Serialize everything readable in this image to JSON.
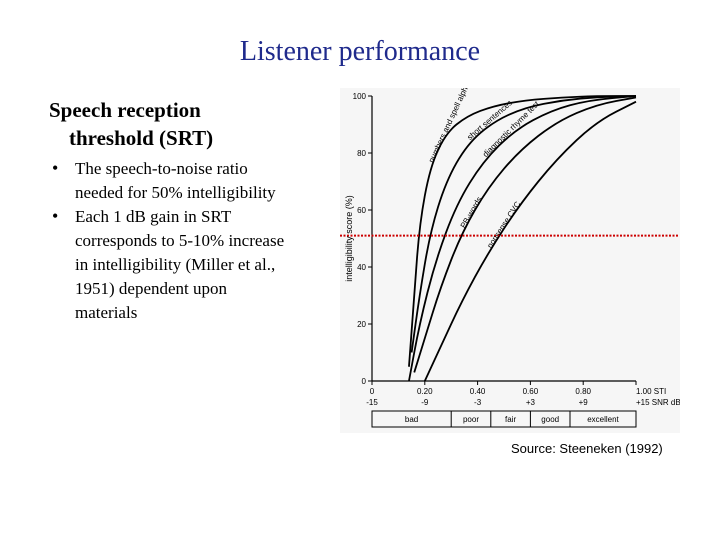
{
  "slide": {
    "title": "Listener performance",
    "heading_line1": "Speech reception",
    "heading_line2": "threshold (SRT)",
    "bullets": [
      {
        "line1": "The speech-to-noise ratio",
        "line2": "needed for 50% intelligibility"
      },
      {
        "line1": "Each 1 dB gain in SRT",
        "line2": "corresponds to 5-10% increase",
        "line3": "in intelligibility (Miller et al.,",
        "line4": "1951) dependent upon",
        "line5": "materials"
      }
    ],
    "source": "Source: Steeneken (1992)"
  },
  "chart_data": {
    "type": "line",
    "ylabel": "intelligibility score (%)",
    "ylim": [
      0,
      100
    ],
    "xlim": [
      0,
      1
    ],
    "y_ticks": [
      "0",
      "20",
      "40",
      "60",
      "80",
      "100"
    ],
    "x_ticks_sti": [
      "0",
      "0.20",
      "0.40",
      "0.60",
      "0.80",
      "1.00 STI"
    ],
    "x_ticks_snr": [
      "-15",
      "-9",
      "-3",
      "+3",
      "+9",
      "+15 SNR dB"
    ],
    "quality_labels": [
      "bad",
      "poor",
      "fair",
      "good",
      "excellent"
    ],
    "threshold_line_y": 51,
    "threshold_color": "#cc0000",
    "series": [
      {
        "name": "numbers and spell alphabet",
        "x": [
          0.14,
          0.16,
          0.18,
          0.22,
          0.28,
          0.36,
          0.46,
          0.58,
          0.72,
          0.85,
          1.0
        ],
        "y": [
          5,
          30,
          55,
          75,
          87,
          93,
          96.5,
          98.5,
          99.5,
          100,
          100
        ]
      },
      {
        "name": "short sentences",
        "x": [
          0.15,
          0.18,
          0.22,
          0.28,
          0.36,
          0.46,
          0.58,
          0.72,
          0.86,
          1.0
        ],
        "y": [
          10,
          30,
          52,
          70,
          83,
          91,
          96,
          98.5,
          99.7,
          100
        ]
      },
      {
        "name": "diagnostic rhyme test",
        "x": [
          0.14,
          0.18,
          0.24,
          0.32,
          0.42,
          0.54,
          0.68,
          0.82,
          1.0
        ],
        "y": [
          0,
          20,
          42,
          62,
          77,
          88,
          95,
          98.5,
          100
        ]
      },
      {
        "name": "PB-words",
        "x": [
          0.16,
          0.2,
          0.26,
          0.34,
          0.44,
          0.56,
          0.7,
          0.85,
          1.0
        ],
        "y": [
          3,
          15,
          33,
          52,
          68,
          81,
          91,
          97,
          99.5
        ]
      },
      {
        "name": "nonsense CVC",
        "x": [
          0.2,
          0.26,
          0.34,
          0.44,
          0.56,
          0.7,
          0.85,
          1.0
        ],
        "y": [
          0,
          12,
          28,
          45,
          62,
          78,
          91,
          98
        ]
      }
    ]
  }
}
